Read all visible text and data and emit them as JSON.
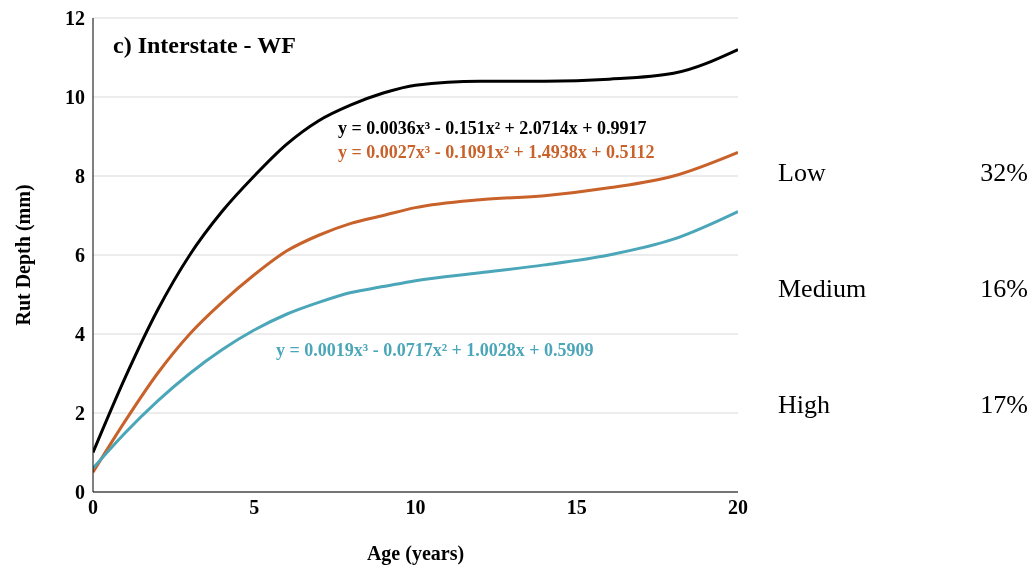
{
  "chart_data": {
    "type": "line",
    "title": "c) Interstate - WF",
    "xlabel": "Age (years)",
    "ylabel": "Rut Depth (mm)",
    "x": [
      0,
      1,
      2,
      3,
      4,
      5,
      6,
      7,
      8,
      9,
      10,
      12,
      14,
      16,
      18,
      20
    ],
    "series": [
      {
        "color": "#000000",
        "values": [
          1.0,
          2.9,
          4.6,
          6.0,
          7.1,
          8.0,
          8.8,
          9.4,
          9.8,
          10.1,
          10.3,
          10.4,
          10.4,
          10.45,
          10.6,
          11.2
        ]
      },
      {
        "color": "#c8622a",
        "values": [
          0.5,
          1.8,
          3.0,
          4.0,
          4.8,
          5.5,
          6.1,
          6.5,
          6.8,
          7.0,
          7.2,
          7.4,
          7.5,
          7.7,
          8.0,
          8.6
        ]
      },
      {
        "color": "#4aa6b8",
        "values": [
          0.6,
          1.5,
          2.3,
          3.0,
          3.6,
          4.1,
          4.5,
          4.8,
          5.05,
          5.2,
          5.35,
          5.55,
          5.75,
          6.0,
          6.4,
          7.1
        ]
      }
    ],
    "xlim": [
      0,
      20
    ],
    "xticks": [
      0,
      5,
      10,
      15,
      20
    ],
    "ylim": [
      0,
      12
    ],
    "yticks": [
      0,
      2,
      4,
      6,
      8,
      10,
      12
    ],
    "grid": "y",
    "marker": "none",
    "line_style": "solid",
    "legend": false,
    "annotations": [
      "y = 0.0036x³ - 0.151x² + 2.0714x + 0.9917",
      "y = 0.0027x³ - 0.1091x² + 1.4938x + 0.5112",
      "y = 0.0019x³ - 0.0717x² + 1.0028x + 0.5909",
      "Low",
      "32%",
      "Medium",
      "16%",
      "High",
      "17%"
    ]
  }
}
